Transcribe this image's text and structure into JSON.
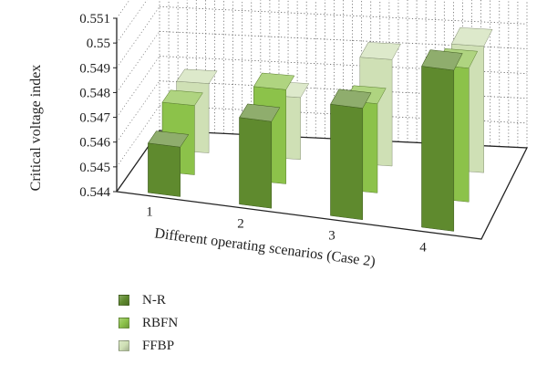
{
  "chart_data": {
    "type": "bar",
    "projection": "3d",
    "title": "",
    "xlabel": "Different operating scenarios (Case 2)",
    "ylabel": "Critical voltage index",
    "categories": [
      "1",
      "2",
      "3",
      "4"
    ],
    "series": [
      {
        "name": "N-R",
        "values": [
          0.546,
          0.5475,
          0.5485,
          0.5505
        ],
        "color": "#5f8a2e"
      },
      {
        "name": "RBFN",
        "values": [
          0.5468,
          0.5478,
          0.5476,
          0.5494
        ],
        "color": "#8cc24a"
      },
      {
        "name": "FFBP",
        "values": [
          0.5468,
          0.5465,
          0.5483,
          0.5491
        ],
        "color": "#cfe0b5"
      }
    ],
    "yticks": [
      "0.544",
      "0.545",
      "0.546",
      "0.547",
      "0.548",
      "0.549",
      "0.55",
      "0.551"
    ],
    "ylim": [
      0.544,
      0.551
    ],
    "grid": true,
    "legend": "bottom-left"
  }
}
